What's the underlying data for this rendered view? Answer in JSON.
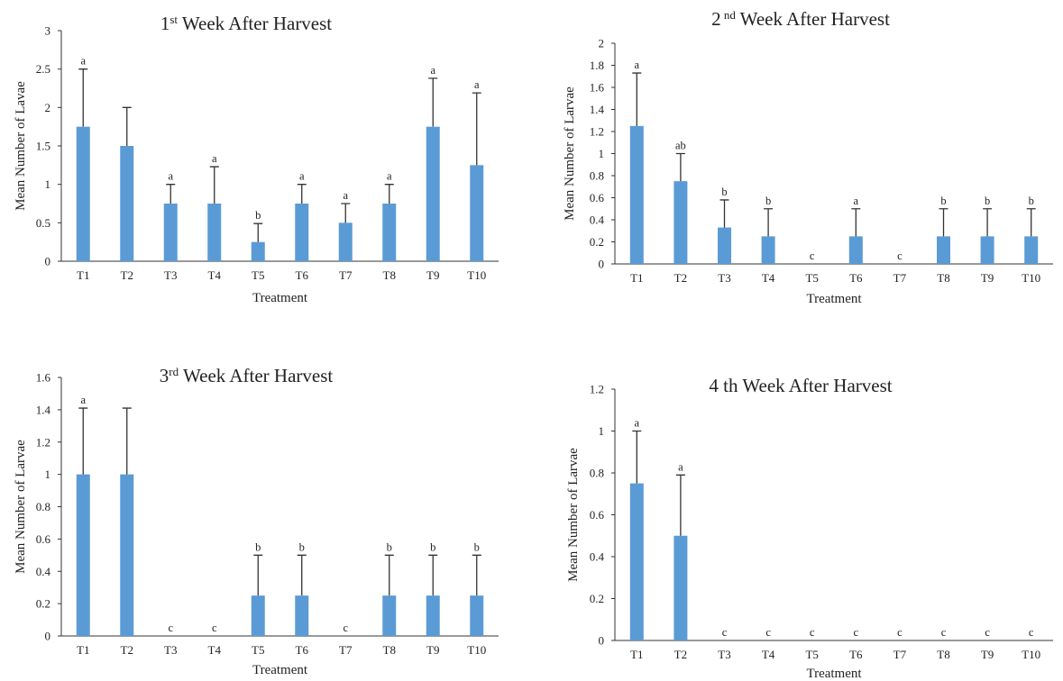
{
  "colors": {
    "bar": "#5b9bd5",
    "error": "#333333",
    "axis": "#333333",
    "text": "#222222"
  },
  "chart_data": [
    {
      "type": "bar",
      "title": "1st Week After Harvest",
      "title_main": "1",
      "title_sup": "st",
      "title_rest": " Week After Harvest",
      "xlabel": "Treatment",
      "ylabel": "Mean Number of Lavae",
      "ylim": [
        0,
        3
      ],
      "yticks": [
        "0",
        "0.5",
        "1",
        "1.5",
        "2",
        "2.5",
        "3"
      ],
      "categories": [
        "T1",
        "T2",
        "T3",
        "T4",
        "T5",
        "T6",
        "T7",
        "T8",
        "T9",
        "T10"
      ],
      "values": [
        1.75,
        1.5,
        0.75,
        0.75,
        0.25,
        0.75,
        0.5,
        0.75,
        1.75,
        1.25
      ],
      "error_upper": [
        2.5,
        2.0,
        1.0,
        1.23,
        0.49,
        1.0,
        0.75,
        1.0,
        2.38,
        2.19
      ],
      "labels": [
        "a",
        "",
        "a",
        "a",
        "b",
        "a",
        "a",
        "a",
        "a",
        "a"
      ],
      "grid": false
    },
    {
      "type": "bar",
      "title": "2 nd Week After Harvest",
      "title_main": "2",
      "title_sup": " nd",
      "title_rest": " Week After Harvest",
      "xlabel": "Treatment",
      "ylabel": "Mean Number of Larvae",
      "ylim": [
        0,
        2
      ],
      "yticks": [
        "0",
        "0.2",
        "0.4",
        "0.6",
        "0.8",
        "1",
        "1.2",
        "1.4",
        "1.6",
        "1.8",
        "2"
      ],
      "categories": [
        "T1",
        "T2",
        "T3",
        "T4",
        "T5",
        "T6",
        "T7",
        "T8",
        "T9",
        "T10"
      ],
      "values": [
        1.25,
        0.75,
        0.33,
        0.25,
        0,
        0.25,
        0,
        0.25,
        0.25,
        0.25
      ],
      "error_upper": [
        1.73,
        1.0,
        0.58,
        0.5,
        0,
        0.5,
        0,
        0.5,
        0.5,
        0.5
      ],
      "labels": [
        "a",
        "ab",
        "b",
        "b",
        "c",
        "a",
        "c",
        "b",
        "b",
        "b"
      ],
      "grid": false
    },
    {
      "type": "bar",
      "title": "3rd Week After Harvest",
      "title_main": "3",
      "title_sup": "rd",
      "title_rest": " Week After Harvest",
      "xlabel": "Treatment",
      "ylabel": "Mean Number of Larvae",
      "ylim": [
        0,
        1.6
      ],
      "yticks": [
        "0",
        "0.2",
        "0.4",
        "0.6",
        "0.8",
        "1",
        "1.2",
        "1.4",
        "1.6"
      ],
      "categories": [
        "T1",
        "T2",
        "T3",
        "T4",
        "T5",
        "T6",
        "T7",
        "T8",
        "T9",
        "T10"
      ],
      "values": [
        1.0,
        1.0,
        0,
        0,
        0.25,
        0.25,
        0,
        0.25,
        0.25,
        0.25
      ],
      "error_upper": [
        1.41,
        1.41,
        0,
        0,
        0.5,
        0.5,
        0,
        0.5,
        0.5,
        0.5
      ],
      "labels": [
        "a",
        "",
        "c",
        "c",
        "b",
        "b",
        "c",
        "b",
        "b",
        "b"
      ],
      "grid": false
    },
    {
      "type": "bar",
      "title": "4 th Week After Harvest",
      "title_main": "4 th",
      "title_sup": "",
      "title_rest": " Week After Harvest",
      "xlabel": "Treatment",
      "ylabel": "Mean Number of Larvae",
      "ylim": [
        0,
        1.2
      ],
      "yticks": [
        "0",
        "0.2",
        "0.4",
        "0.6",
        "0.8",
        "1",
        "1.2"
      ],
      "categories": [
        "T1",
        "T2",
        "T3",
        "T4",
        "T5",
        "T6",
        "T7",
        "T8",
        "T9",
        "T10"
      ],
      "values": [
        0.75,
        0.5,
        0,
        0,
        0,
        0,
        0,
        0,
        0,
        0
      ],
      "error_upper": [
        1.0,
        0.79,
        0,
        0,
        0,
        0,
        0,
        0,
        0,
        0
      ],
      "labels": [
        "a",
        "a",
        "c",
        "c",
        "c",
        "c",
        "c",
        "c",
        "c",
        "c"
      ],
      "grid": false
    }
  ]
}
